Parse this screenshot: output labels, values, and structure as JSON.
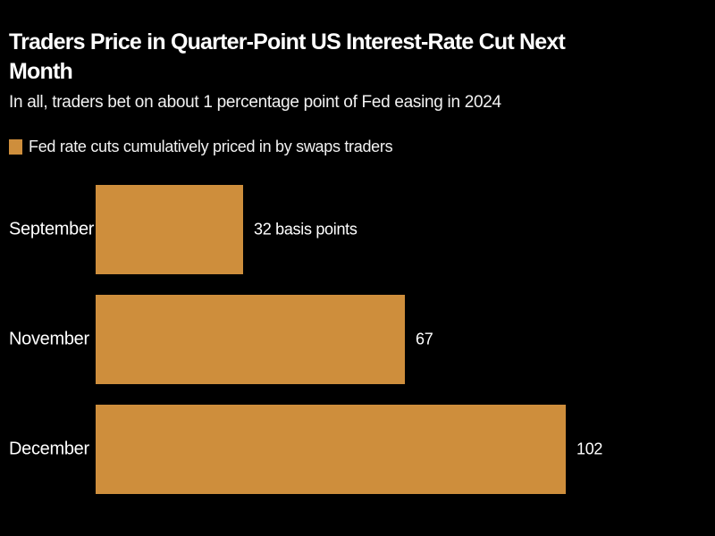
{
  "header": {
    "title_lines": [
      "Traders Price in Quarter-Point US Interest-Rate Cut Next",
      "Month"
    ],
    "subtitle": "In all, traders bet on about 1 percentage point of Fed easing in 2024"
  },
  "legend": {
    "label": "Fed rate cuts cumulatively priced in by swaps traders",
    "swatch_color": "#CE8E3C"
  },
  "colors": {
    "background": "#000000",
    "bar": "#CE8E3C",
    "title_text": "#FFFFFF",
    "body_text": "#F2F2F2"
  },
  "chart_data": {
    "type": "bar",
    "orientation": "horizontal",
    "title": "Traders Price in Quarter-Point US Interest-Rate Cut Next Month",
    "subtitle": "In all, traders bet on about 1 percentage point of Fed easing in 2024",
    "legend": [
      "Fed rate cuts cumulatively priced in by swaps traders"
    ],
    "legend_position": "top-left",
    "categories": [
      "September",
      "November",
      "December"
    ],
    "values": [
      32,
      67,
      102
    ],
    "value_labels": [
      "32 basis points",
      "67",
      "102"
    ],
    "unit": "basis points",
    "xlim": [
      0,
      102
    ],
    "grid": false,
    "bar_color": "#CE8E3C"
  }
}
